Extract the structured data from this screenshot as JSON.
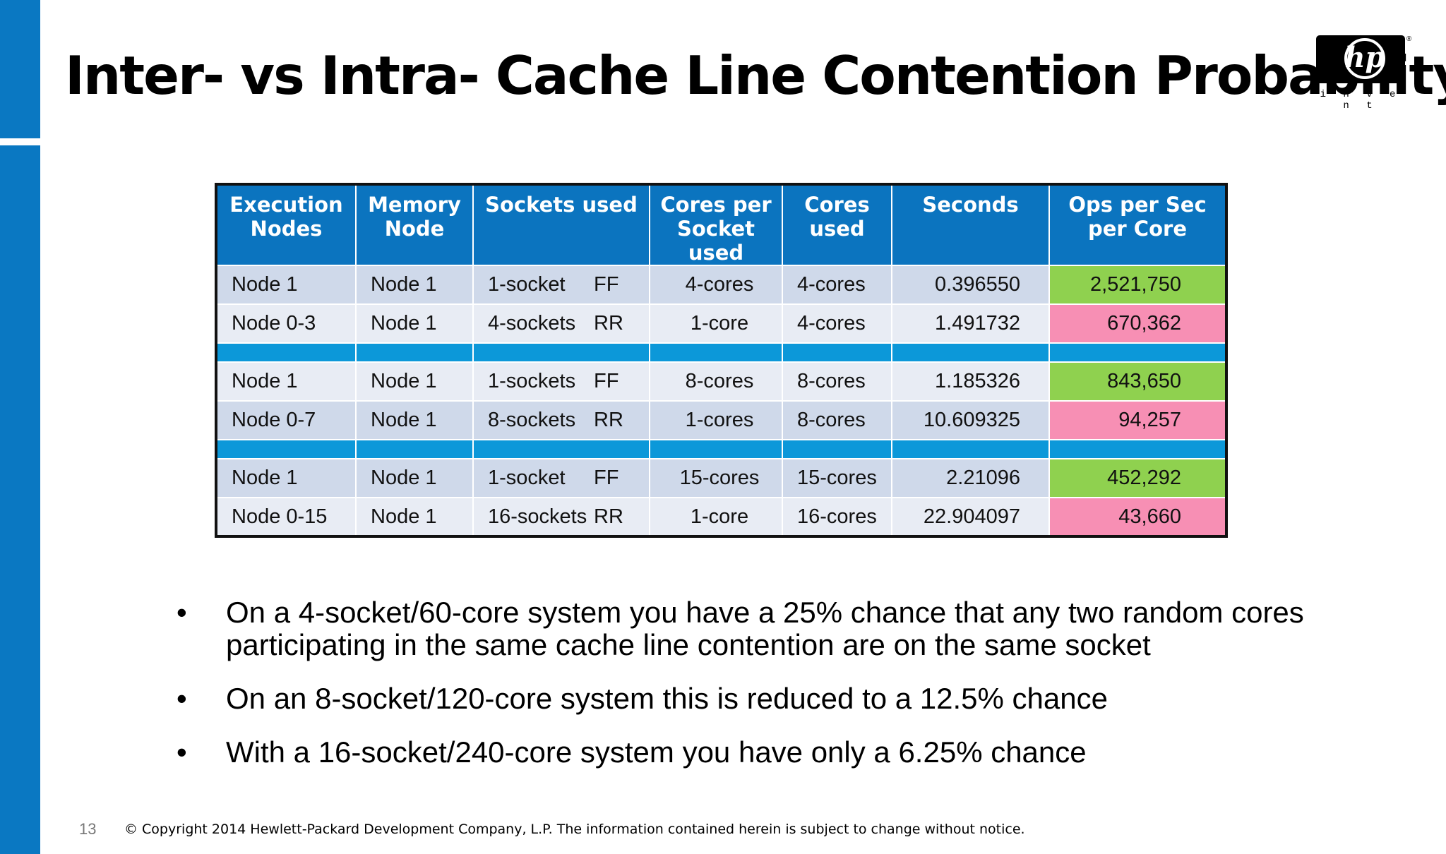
{
  "slide": {
    "title": "Inter- vs Intra- Cache Line Contention Probability",
    "page_number": "13",
    "copyright": "© Copyright 2014 Hewlett-Packard Development Company, L.P.  The information contained herein is subject to change without notice."
  },
  "logo": {
    "text": "hp",
    "tagline": "i n v e n t",
    "registered": "®"
  },
  "table": {
    "headers": [
      "Execution Nodes",
      "Memory Node",
      "Sockets used",
      "Cores per Socket used",
      "Cores used",
      "Seconds",
      "Ops  per  Sec per  Core"
    ],
    "groups": [
      [
        {
          "exec": "Node 1",
          "mem": "Node 1",
          "sockets": "1-socket",
          "mode": "FF",
          "cps": "4-cores",
          "cores": "4-cores",
          "seconds": "0.396550",
          "ops": "2,521,750",
          "ops_status": "good"
        },
        {
          "exec": "Node 0-3",
          "mem": "Node 1",
          "sockets": "4-sockets",
          "mode": "RR",
          "cps": "1-core",
          "cores": "4-cores",
          "seconds": "1.491732",
          "ops": "670,362",
          "ops_status": "bad"
        }
      ],
      [
        {
          "exec": "Node 1",
          "mem": "Node 1",
          "sockets": "1-sockets",
          "mode": "FF",
          "cps": "8-cores",
          "cores": "8-cores",
          "seconds": "1.185326",
          "ops": "843,650",
          "ops_status": "good"
        },
        {
          "exec": "Node 0-7",
          "mem": "Node 1",
          "sockets": "8-sockets",
          "mode": "RR",
          "cps": "1-cores",
          "cores": "8-cores",
          "seconds": "10.609325",
          "ops": "94,257",
          "ops_status": "bad"
        }
      ],
      [
        {
          "exec": "Node 1",
          "mem": "Node 1",
          "sockets": "1-socket",
          "mode": "FF",
          "cps": "15-cores",
          "cores": "15-cores",
          "seconds": "2.21096",
          "ops": "452,292",
          "ops_status": "good"
        },
        {
          "exec": "Node 0-15",
          "mem": "Node 1",
          "sockets": "16-sockets",
          "mode": "RR",
          "cps": "1-core",
          "cores": "16-cores",
          "seconds": "22.904097",
          "ops": "43,660",
          "ops_status": "bad"
        }
      ]
    ]
  },
  "bullets": [
    "On a 4-socket/60-core system you have a 25% chance that any two random cores participating in the same cache line contention are on the same socket",
    "On an 8-socket/120-core system this is reduced to a 12.5% chance",
    "With a 16-socket/240-core system you have only a 6.25% chance"
  ],
  "bullet_glyph": "•",
  "colors": {
    "accent_blue": "#0a78c2",
    "header_blue": "#0b74bf",
    "separator_blue": "#0c98d9",
    "good_green": "#8fd14f",
    "bad_pink": "#f78fb4"
  }
}
